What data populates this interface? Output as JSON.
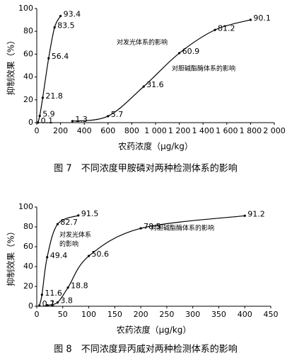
{
  "chart_data": [
    {
      "type": "line",
      "caption": "图 7　不同浓度甲胺磷对两种检测体系的影响",
      "x_label": "农药浓度（μg/kg）",
      "y_label": "抑制效果（%）",
      "xlim": [
        0,
        2000
      ],
      "ylim": [
        0,
        100
      ],
      "xticks": [
        0,
        200,
        400,
        600,
        800,
        {
          "value": 1000,
          "label": "1 000"
        },
        {
          "value": 1200,
          "label": "1 200"
        },
        {
          "value": 1400,
          "label": "1 400"
        },
        {
          "value": 1600,
          "label": "1 600"
        },
        {
          "value": 1800,
          "label": "1 800"
        },
        {
          "value": 2000,
          "label": "2 000"
        }
      ],
      "yticks": [
        0,
        20,
        40,
        60,
        80,
        100
      ],
      "series": [
        {
          "name": "对发光体系的影响",
          "color": "#000000",
          "x": [
            10,
            25,
            50,
            100,
            150,
            200
          ],
          "values": [
            0.1,
            5.9,
            21.8,
            56.4,
            83.5,
            93.4
          ]
        },
        {
          "name": "对胆碱酯酶体系的影响",
          "color": "#000000",
          "x": [
            300,
            600,
            900,
            1200,
            1500,
            1800
          ],
          "values": [
            1.3,
            5.7,
            31.6,
            60.9,
            81.2,
            90.1
          ]
        }
      ]
    },
    {
      "type": "line",
      "caption": "图 8　不同浓度异丙威对两种检测体系的影响",
      "x_label": "农药浓度（μg/kg）",
      "y_label": "抑制效果（%）",
      "xlim": [
        0,
        450
      ],
      "ylim": [
        0,
        100
      ],
      "xticks": [
        0,
        50,
        100,
        150,
        200,
        250,
        300,
        350,
        400,
        450
      ],
      "yticks": [
        0,
        20,
        40,
        60,
        80,
        100
      ],
      "series": [
        {
          "name": "对发光体系的影响",
          "color": "#000000",
          "x": [
            5,
            10,
            20,
            40,
            80
          ],
          "values": [
            0.7,
            11.6,
            49.4,
            82.7,
            91.5
          ]
        },
        {
          "name": "对胆碱酯酶体系的影响",
          "color": "#000000",
          "x": [
            20,
            40,
            60,
            100,
            200,
            400
          ],
          "values": [
            1,
            3.8,
            18.8,
            50.6,
            78.5,
            91.2
          ]
        }
      ]
    }
  ]
}
